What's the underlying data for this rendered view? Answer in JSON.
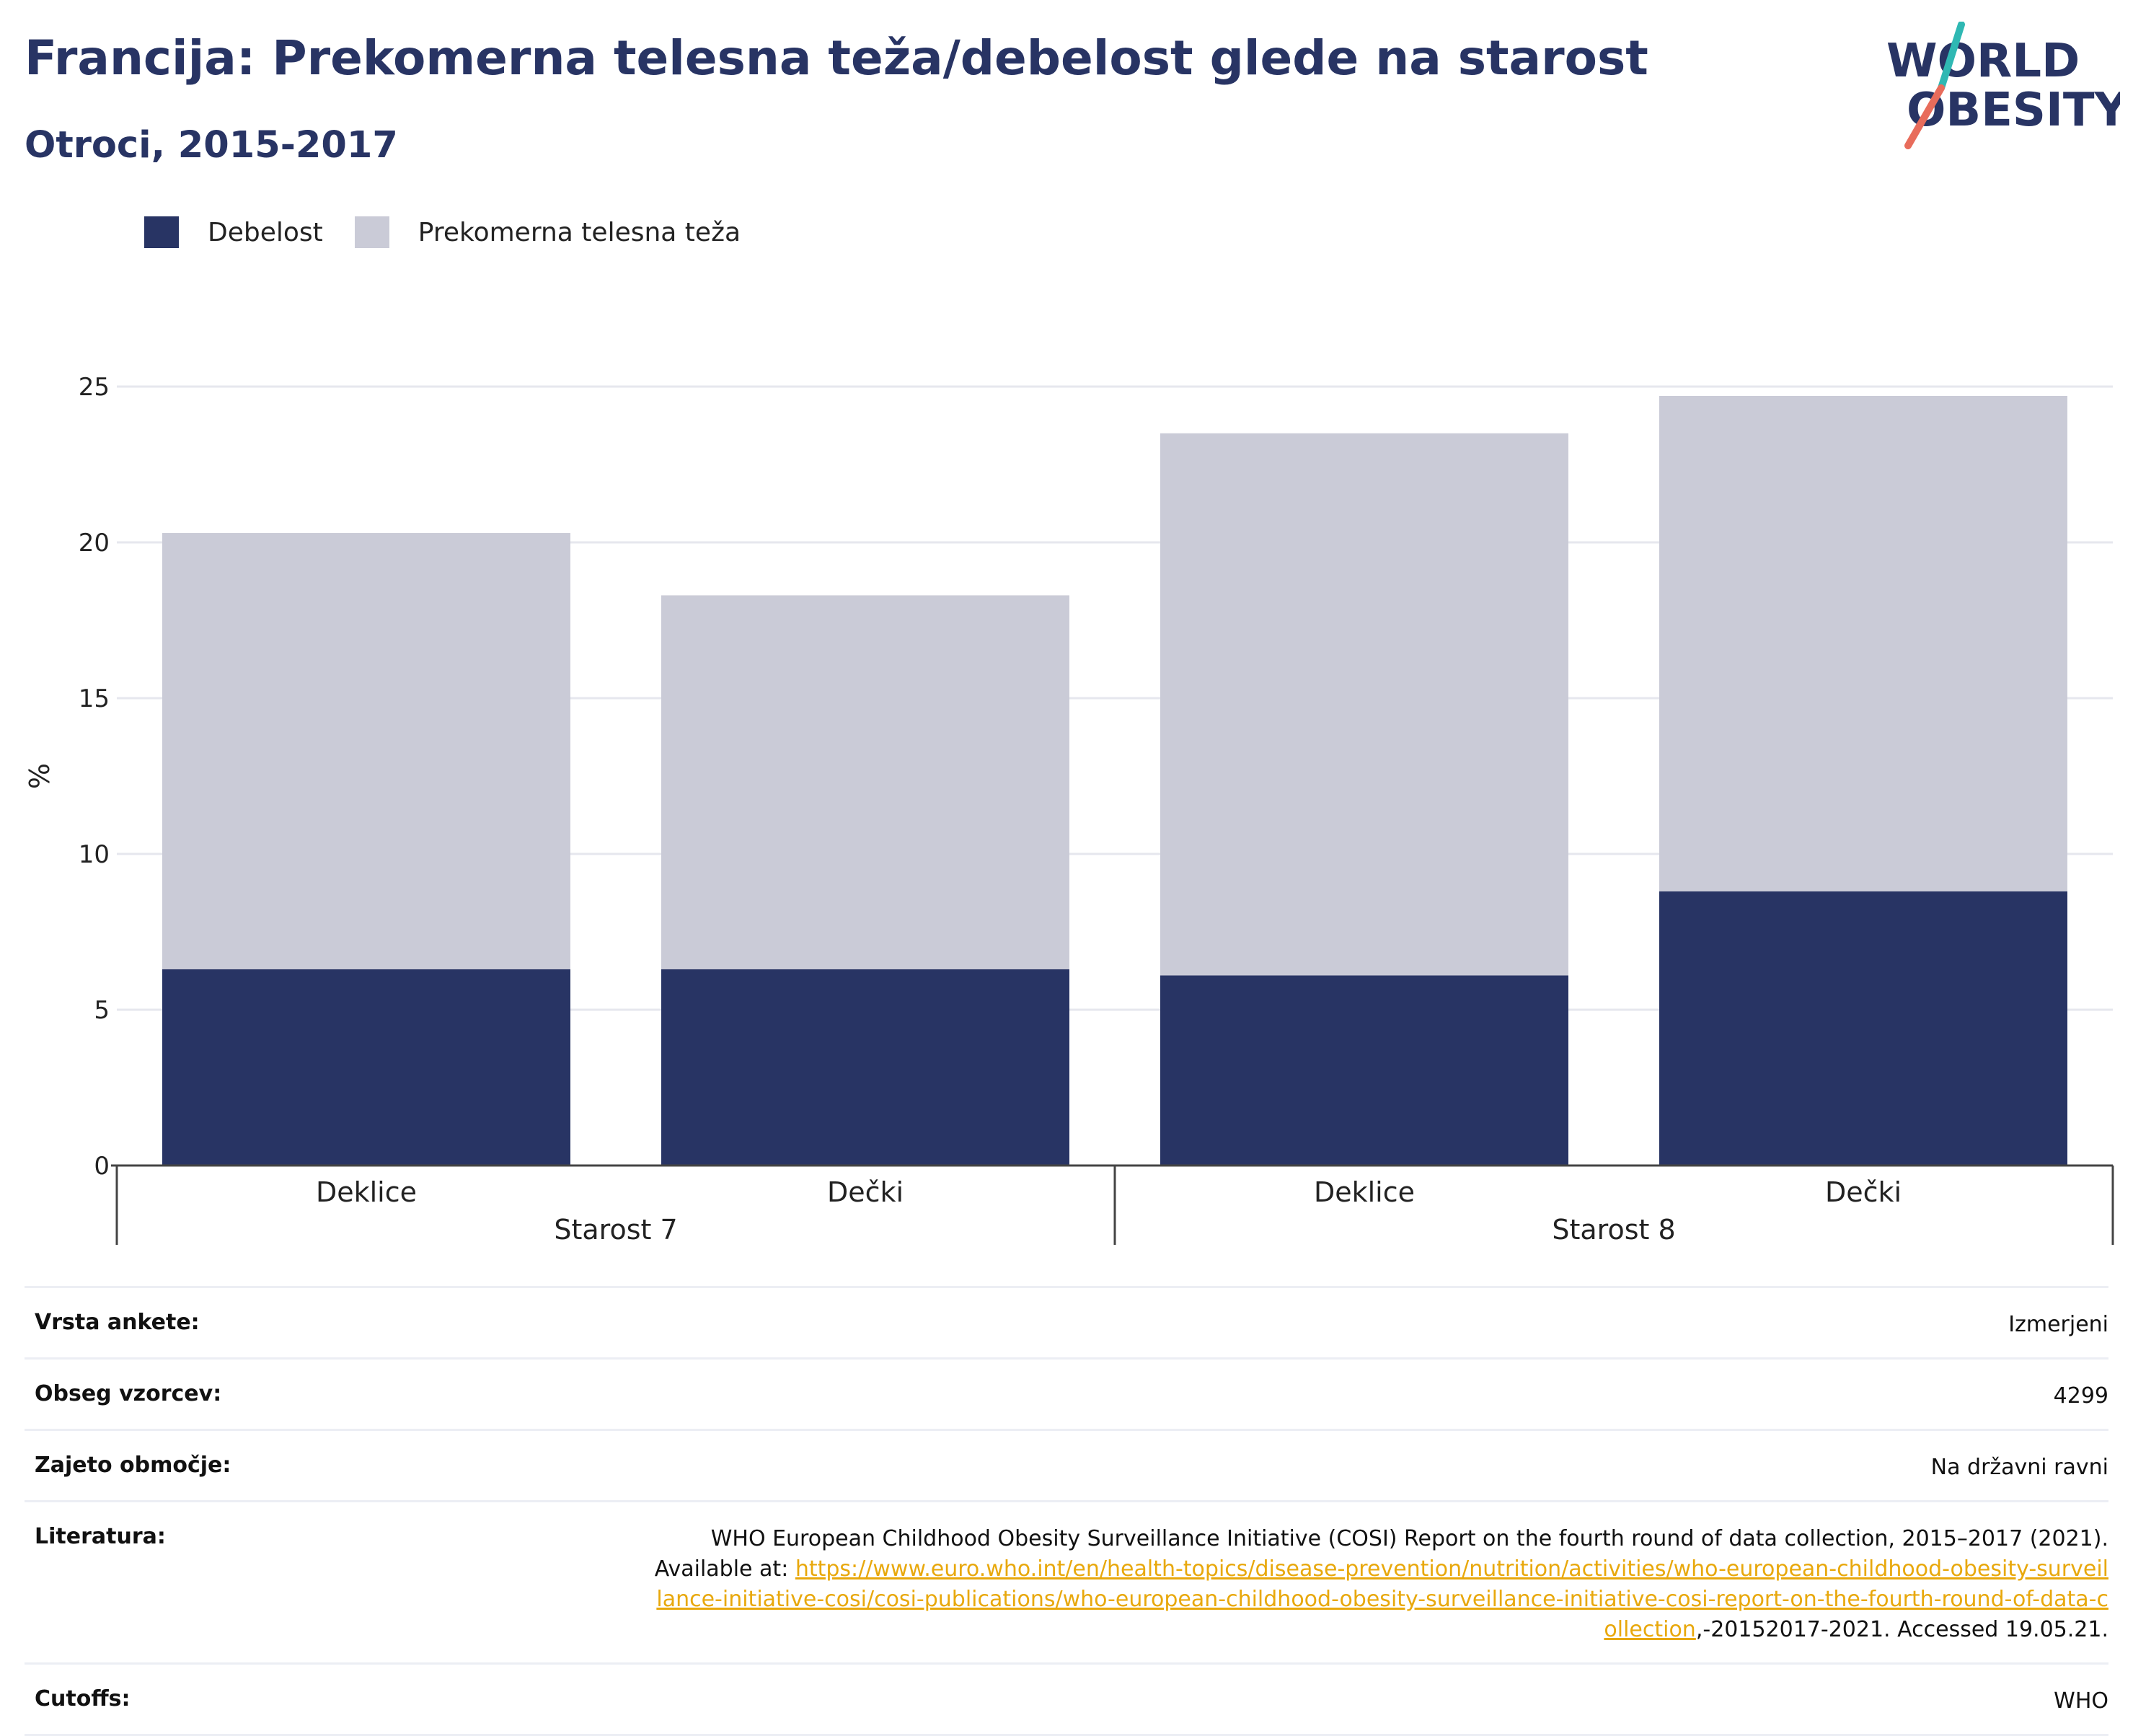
{
  "title": "Francija: Prekomerna telesna teža/debelost glede na starost",
  "subtitle": "Otroci, 2015-2017",
  "logo": {
    "line1": "WORLD",
    "line2": "OBESITY",
    "colors": [
      "#283464",
      "#e86c5b",
      "#2fb8b3"
    ]
  },
  "legend": [
    {
      "label": "Debelost",
      "color": "#283464"
    },
    {
      "label": "Prekomerna telesna teža",
      "color": "#cacbd7"
    }
  ],
  "chart_data": {
    "type": "bar",
    "stacked": true,
    "ylabel": "%",
    "ylim": [
      0,
      25
    ],
    "yticks": [
      0,
      5,
      10,
      15,
      20,
      25
    ],
    "grid": true,
    "legend_position": "top-left",
    "categories": [
      "Deklice",
      "Dečki",
      "Deklice",
      "Dečki"
    ],
    "groups": [
      {
        "label": "Starost 7",
        "span": [
          0,
          1
        ]
      },
      {
        "label": "Starost 8",
        "span": [
          2,
          3
        ]
      }
    ],
    "series": [
      {
        "name": "Debelost",
        "color": "#283464",
        "values": [
          6.3,
          6.3,
          6.1,
          8.8
        ]
      },
      {
        "name": "Prekomerna telesna teža",
        "color": "#cacbd7",
        "values": [
          14.0,
          12.0,
          17.4,
          15.9
        ]
      }
    ]
  },
  "info": {
    "survey_label": "Vrsta ankete:",
    "survey_value": "Izmerjeni",
    "sample_label": "Obseg vzorcev:",
    "sample_value": "4299",
    "area_label": "Zajeto območje:",
    "area_value": "Na državni ravni",
    "lit_label": "Literatura:",
    "lit_text": "WHO European Childhood Obesity Surveillance Initiative (COSI) Report on the fourth round of data collection, 2015–2017 (2021). Available at: ",
    "lit_link": "https://www.euro.who.int/en/health-topics/disease-prevention/nutrition/activities/who-european-childhood-obesity-surveillance-initiative-cosi/cosi-publications/who-european-childhood-obesity-surveillance-initiative-cosi-report-on-the-fourth-round-of-data-collection",
    "lit_suffix": ",-20152017-2021. Accessed 19.05.21.",
    "cutoffs_label": "Cutoffs:",
    "cutoffs_value": "WHO"
  }
}
